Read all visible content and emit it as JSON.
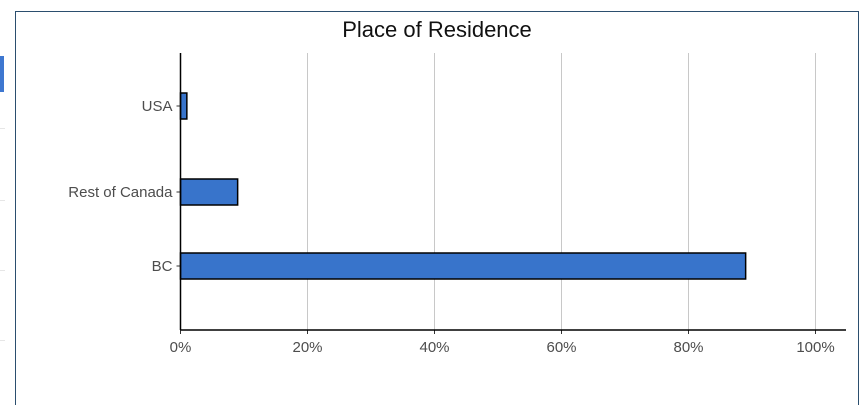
{
  "chart_data": {
    "type": "bar",
    "orientation": "horizontal",
    "title": "Place of Residence",
    "categories": [
      "USA",
      "Rest of Canada",
      "BC"
    ],
    "values": [
      1,
      9,
      89
    ],
    "xlim": [
      0,
      100
    ],
    "xticks": [
      "0%",
      "20%",
      "40%",
      "60%",
      "80%",
      "100%"
    ],
    "xlabel": "",
    "ylabel": "",
    "grid": "vertical",
    "bar_color": "#3874cb",
    "bar_outline": "#000000"
  }
}
